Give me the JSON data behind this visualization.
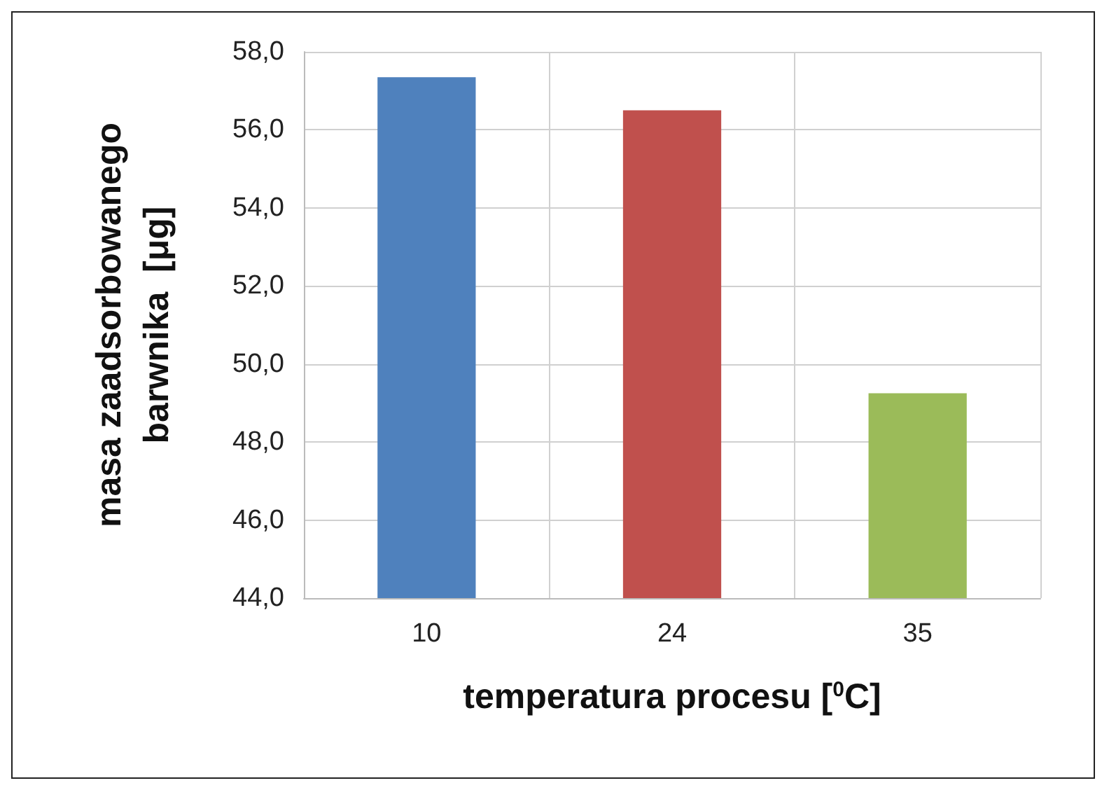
{
  "chart_data": {
    "type": "bar",
    "xlabel": "temperatura procesu [$^{0}$C]",
    "ylabel": "masa zaadsorbowanego\nbarwnika  [μg]",
    "categories": [
      "10",
      "24",
      "35"
    ],
    "values": [
      57.35,
      56.5,
      49.25
    ],
    "colors": [
      "#4f81bd",
      "#c0504d",
      "#9bbb59"
    ],
    "ylim": [
      44,
      58
    ],
    "yticks": [
      {
        "value": 44,
        "label": "44,0"
      },
      {
        "value": 46,
        "label": "46,0"
      },
      {
        "value": 48,
        "label": "48,0"
      },
      {
        "value": 50,
        "label": "50,0"
      },
      {
        "value": 52,
        "label": "52,0"
      },
      {
        "value": 54,
        "label": "54,0"
      },
      {
        "value": 56,
        "label": "56,0"
      },
      {
        "value": 58,
        "label": "58,0"
      }
    ],
    "grid": true
  }
}
